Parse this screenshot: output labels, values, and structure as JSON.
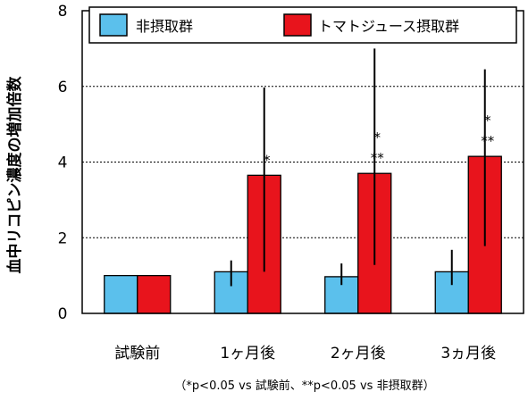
{
  "chart_data": {
    "type": "bar",
    "ylabel": "血中リコピン濃度の増加倍数",
    "ylim": [
      0,
      8
    ],
    "yticks": [
      "0",
      "2",
      "4",
      "6",
      "8"
    ],
    "grid": "horizontal dotted",
    "legend_position": "top",
    "categories": [
      "試験前",
      "1ヶ月後",
      "2ヶ月後",
      "3ヵ月後"
    ],
    "series": [
      {
        "name": "非摂取群",
        "color": "#5bc0ec",
        "values": [
          1.0,
          1.1,
          0.97,
          1.1
        ],
        "err_low": [
          1.0,
          0.72,
          0.75,
          0.75
        ],
        "err_high": [
          1.0,
          1.4,
          1.32,
          1.68
        ]
      },
      {
        "name": "トマトジュース摂取群",
        "color": "#e8141c",
        "values": [
          1.0,
          3.65,
          3.7,
          4.15
        ],
        "err_low": [
          1.0,
          1.1,
          1.28,
          1.78
        ],
        "err_high": [
          1.0,
          5.97,
          7.0,
          6.45
        ]
      }
    ],
    "annotations": [
      {
        "category": 1,
        "series": 1,
        "lines": [
          "*"
        ]
      },
      {
        "category": 2,
        "series": 1,
        "lines": [
          "*",
          "**"
        ]
      },
      {
        "category": 3,
        "series": 1,
        "lines": [
          "*",
          "**"
        ]
      }
    ],
    "footnote": "（*p<0.05 vs 試験前、**p<0.05 vs 非摂取群）"
  }
}
